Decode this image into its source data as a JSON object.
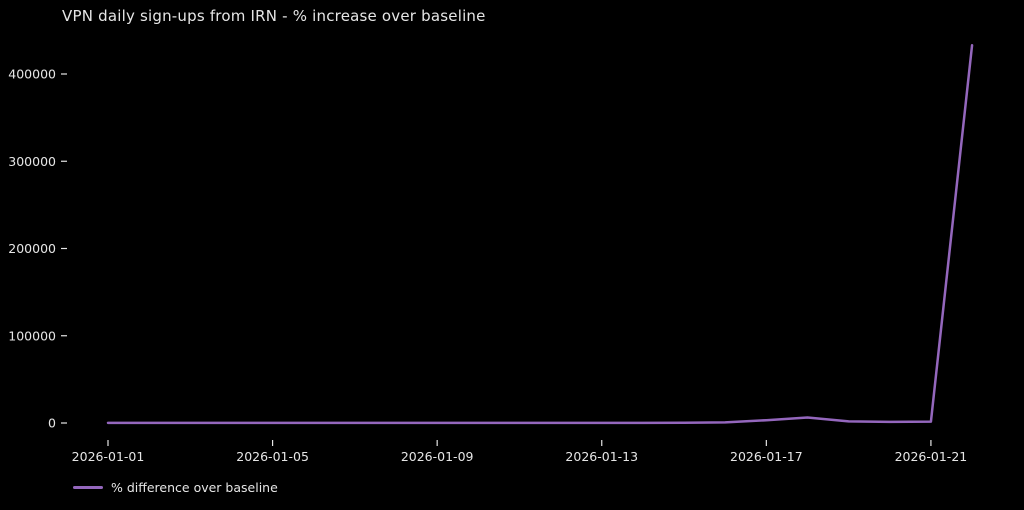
{
  "colors": {
    "background": "#000000",
    "text": "#e6e6e6",
    "line": "#9467bd"
  },
  "legend": {
    "label": "% difference over baseline"
  },
  "chart_data": {
    "type": "line",
    "title": "VPN daily sign-ups from IRN - % increase over baseline",
    "xlabel": "",
    "ylabel": "",
    "x": [
      "2026-01-01",
      "2026-01-02",
      "2026-01-03",
      "2026-01-04",
      "2026-01-05",
      "2026-01-06",
      "2026-01-07",
      "2026-01-08",
      "2026-01-09",
      "2026-01-10",
      "2026-01-11",
      "2026-01-12",
      "2026-01-13",
      "2026-01-14",
      "2026-01-15",
      "2026-01-16",
      "2026-01-17",
      "2026-01-18",
      "2026-01-19",
      "2026-01-20",
      "2026-01-21",
      "2026-01-22"
    ],
    "series": [
      {
        "name": "% difference over baseline",
        "color": "#9467bd",
        "values": [
          150,
          120,
          180,
          140,
          160,
          130,
          170,
          150,
          140,
          190,
          160,
          180,
          150,
          170,
          250,
          700,
          3200,
          6300,
          1900,
          1300,
          1600,
          433000
        ]
      }
    ],
    "x_tick_labels": [
      "2026-01-01",
      "2026-01-05",
      "2026-01-09",
      "2026-01-13",
      "2026-01-17",
      "2026-01-21"
    ],
    "y_ticks": [
      0,
      100000,
      200000,
      300000,
      400000
    ],
    "ylim": [
      -21650,
      454650
    ],
    "grid": false,
    "legend_position": "lower-left",
    "background": "#000000"
  }
}
